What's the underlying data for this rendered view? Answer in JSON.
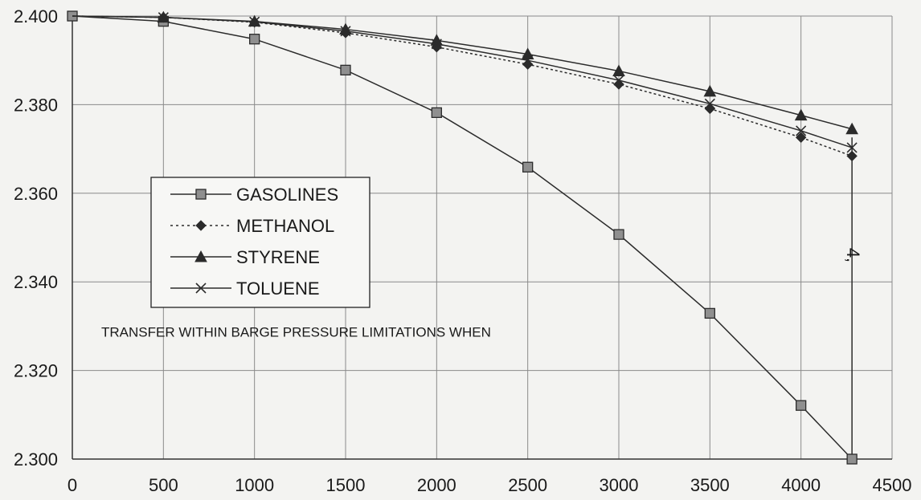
{
  "chart_data": {
    "type": "line",
    "title": "",
    "xlabel": "",
    "ylabel": "",
    "xlim": [
      0,
      4500
    ],
    "ylim": [
      2.3,
      2.4
    ],
    "x_ticks": [
      "0",
      "500",
      "1000",
      "1500",
      "2000",
      "2500",
      "3000",
      "3500",
      "4000",
      "4500"
    ],
    "y_ticks": [
      "2.300",
      "2.320",
      "2.340",
      "2.360",
      "2.380",
      "2.400"
    ],
    "grid": true,
    "legend_position": "left-middle",
    "series": [
      {
        "name": "GASOLINES",
        "marker": "square",
        "style": "solid",
        "x": [
          0,
          500,
          1000,
          1500,
          2000,
          2500,
          3000,
          3500,
          4000,
          4280
        ],
        "y": [
          2.4,
          2.3988,
          2.3948,
          2.3878,
          2.3782,
          2.3659,
          2.3507,
          2.3329,
          2.3121,
          2.3
        ]
      },
      {
        "name": "METHANOL",
        "marker": "diamond",
        "style": "dotted",
        "x": [
          0,
          500,
          1000,
          1500,
          2000,
          2500,
          3000,
          3500,
          4000,
          4280
        ],
        "y": [
          2.4,
          2.3997,
          2.3986,
          2.3962,
          2.393,
          2.3891,
          2.3846,
          2.3791,
          2.3726,
          2.3684
        ]
      },
      {
        "name": "STYRENE",
        "marker": "triangle",
        "style": "solid",
        "x": [
          0,
          500,
          1000,
          1500,
          2000,
          2500,
          3000,
          3500,
          4000,
          4280
        ],
        "y": [
          2.4,
          2.3997,
          2.3988,
          2.397,
          2.3945,
          2.3914,
          2.3876,
          2.383,
          2.3776,
          2.3745
        ]
      },
      {
        "name": "TOLUENE",
        "marker": "x",
        "style": "solid",
        "x": [
          0,
          500,
          1000,
          1500,
          2000,
          2500,
          3000,
          3500,
          4000,
          4280
        ],
        "y": [
          2.4,
          2.3997,
          2.3987,
          2.3966,
          2.3937,
          2.39,
          2.3855,
          2.3802,
          2.3741,
          2.3703
        ]
      }
    ],
    "annotations": [
      {
        "text": "TRANSFER WITHIN BARGE PRESSURE LIMITATIONS WHEN",
        "x": 150,
        "y": 2.3276
      }
    ],
    "vertical_marker": {
      "x": 4280,
      "label": "4,"
    }
  },
  "colors": {
    "background": "#f3f3f1",
    "grid": "#8a8a8a",
    "line": "#2b2b2b",
    "marker_fill": "#8f8f8f"
  }
}
